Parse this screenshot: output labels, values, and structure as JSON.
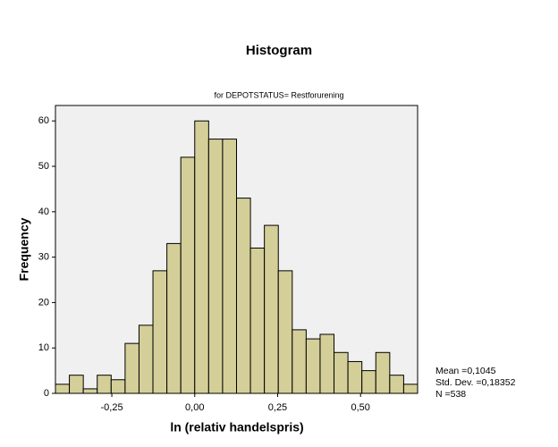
{
  "chart_data": {
    "type": "histogram",
    "title": "Histogram",
    "subtitle": "for DEPOTSTATUS= Restforurening",
    "x_label": "ln (relativ handelspris)",
    "y_label": "Frequency",
    "bins": [
      -0.42,
      -0.378,
      -0.336,
      -0.294,
      -0.252,
      -0.21,
      -0.168,
      -0.126,
      -0.084,
      -0.042,
      0.0,
      0.042,
      0.084,
      0.126,
      0.168,
      0.21,
      0.252,
      0.294,
      0.336,
      0.378,
      0.42,
      0.462,
      0.504,
      0.546,
      0.588,
      0.63,
      0.672
    ],
    "values": [
      2,
      4,
      1,
      4,
      3,
      11,
      15,
      27,
      33,
      52,
      60,
      56,
      56,
      43,
      32,
      37,
      27,
      14,
      12,
      13,
      9,
      7,
      5,
      9,
      4,
      2
    ],
    "color": "#d4cf98",
    "xlim": [
      -0.42,
      0.672
    ],
    "ylim": [
      0,
      63.4
    ],
    "xticks": [
      {
        "value": -0.25,
        "label": "-0,25"
      },
      {
        "value": 0,
        "label": "0,00"
      },
      {
        "value": 0.25,
        "label": "0,25"
      },
      {
        "value": 0.5,
        "label": "0,50"
      }
    ],
    "yticks": [
      0,
      10,
      20,
      30,
      40,
      50,
      60
    ],
    "stats": [
      "Mean =0,1045",
      "Std. Dev. =0,18352",
      "N =538"
    ]
  }
}
